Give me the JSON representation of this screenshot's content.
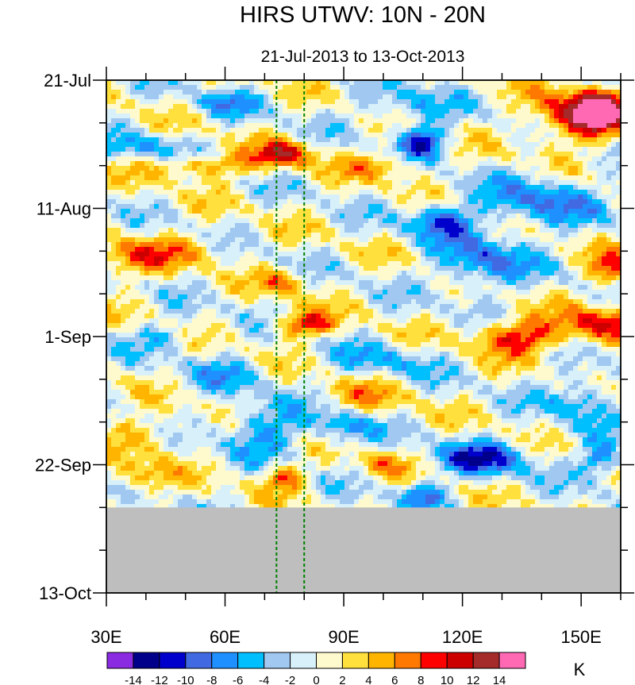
{
  "chart_data": {
    "type": "heatmap",
    "title": "HIRS UTWV: 10N - 20N",
    "subtitle": "21-Jul-2013 to 13-Oct-2013",
    "xlabel": "",
    "ylabel": "",
    "x_axis": {
      "min": 30,
      "max": 160,
      "ticks": [
        {
          "value": 30,
          "label": "30E"
        },
        {
          "value": 60,
          "label": "60E"
        },
        {
          "value": 90,
          "label": "90E"
        },
        {
          "value": 120,
          "label": "120E"
        },
        {
          "value": 150,
          "label": "150E"
        }
      ]
    },
    "y_axis": {
      "min_day": 0,
      "max_day": 84,
      "ticks": [
        {
          "day": 0,
          "label": "21-Jul"
        },
        {
          "day": 21,
          "label": "11-Aug"
        },
        {
          "day": 42,
          "label": "1-Sep"
        },
        {
          "day": 63,
          "label": "22-Sep"
        },
        {
          "day": 84,
          "label": "13-Oct"
        }
      ],
      "minor_step_days": 7
    },
    "no_data_from_day": 70,
    "dashed_lines_lon": [
      73,
      80
    ],
    "colorbar": {
      "levels": [
        "-14",
        "-12",
        "-10",
        "-8",
        "-6",
        "-4",
        "-2",
        "0",
        "2",
        "4",
        "6",
        "8",
        "10",
        "12",
        "14"
      ],
      "colors": [
        "#8a2be2",
        "#00008b",
        "#0000cd",
        "#4169e1",
        "#1e90ff",
        "#00bfff",
        "#a0c8f0",
        "#d8f0fa",
        "#fffacd",
        "#ffe03c",
        "#ffb400",
        "#ff7800",
        "#ff0000",
        "#cd0000",
        "#a52a2a",
        "#ff69b4"
      ],
      "unit": "K"
    },
    "anomalies": [
      {
        "lon": 155,
        "day": 5,
        "value": 14,
        "slon": 5,
        "sday": 2.5
      },
      {
        "lon": 147,
        "day": 6,
        "value": 9,
        "slon": 7,
        "sday": 3
      },
      {
        "lon": 75,
        "day": 12,
        "value": 10,
        "slon": 5,
        "sday": 1.5
      },
      {
        "lon": 55,
        "day": 14,
        "value": 7,
        "slon": 10,
        "sday": 1.5
      },
      {
        "lon": 100,
        "day": 14,
        "value": 5,
        "slon": 8,
        "sday": 1.5
      },
      {
        "lon": 40,
        "day": 11,
        "value": -5,
        "slon": 8,
        "sday": 1.5
      },
      {
        "lon": 60,
        "day": 4,
        "value": -5,
        "slon": 6,
        "sday": 1.5
      },
      {
        "lon": 110,
        "day": 10,
        "value": -11,
        "slon": 4,
        "sday": 2
      },
      {
        "lon": 105,
        "day": 4,
        "value": -5,
        "slon": 8,
        "sday": 2
      },
      {
        "lon": 140,
        "day": 20,
        "value": -7,
        "slon": 10,
        "sday": 3
      },
      {
        "lon": 115,
        "day": 23,
        "value": -9,
        "slon": 6,
        "sday": 2
      },
      {
        "lon": 125,
        "day": 30,
        "value": -8,
        "slon": 8,
        "sday": 3
      },
      {
        "lon": 45,
        "day": 28,
        "value": 5,
        "slon": 10,
        "sday": 2
      },
      {
        "lon": 35,
        "day": 30,
        "value": 4,
        "slon": 6,
        "sday": 2
      },
      {
        "lon": 75,
        "day": 33,
        "value": 6,
        "slon": 4,
        "sday": 1.5
      },
      {
        "lon": 80,
        "day": 40,
        "value": 10,
        "slon": 5,
        "sday": 1.5
      },
      {
        "lon": 135,
        "day": 42,
        "value": 10,
        "slon": 8,
        "sday": 2
      },
      {
        "lon": 155,
        "day": 40,
        "value": 9,
        "slon": 7,
        "sday": 2
      },
      {
        "lon": 158,
        "day": 31,
        "value": 9,
        "slon": 4,
        "sday": 2
      },
      {
        "lon": 45,
        "day": 42,
        "value": -4,
        "slon": 6,
        "sday": 1.5
      },
      {
        "lon": 60,
        "day": 48,
        "value": -4,
        "slon": 7,
        "sday": 2
      },
      {
        "lon": 100,
        "day": 46,
        "value": -4,
        "slon": 10,
        "sday": 2
      },
      {
        "lon": 150,
        "day": 52,
        "value": -6,
        "slon": 6,
        "sday": 3
      },
      {
        "lon": 125,
        "day": 62,
        "value": -10,
        "slon": 8,
        "sday": 2
      },
      {
        "lon": 155,
        "day": 62,
        "value": -8,
        "slon": 4,
        "sday": 2
      },
      {
        "lon": 70,
        "day": 57,
        "value": -7,
        "slon": 7,
        "sday": 3
      },
      {
        "lon": 40,
        "day": 58,
        "value": 5,
        "slon": 6,
        "sday": 2
      },
      {
        "lon": 38,
        "day": 65,
        "value": 5,
        "slon": 6,
        "sday": 2
      },
      {
        "lon": 75,
        "day": 65,
        "value": 8,
        "slon": 4,
        "sday": 1.5
      },
      {
        "lon": 100,
        "day": 63,
        "value": 5,
        "slon": 4,
        "sday": 1.5
      },
      {
        "lon": 110,
        "day": 68,
        "value": -8,
        "slon": 4,
        "sday": 1.5
      },
      {
        "lon": 90,
        "day": 57,
        "value": -6,
        "slon": 5,
        "sday": 2
      },
      {
        "lon": 95,
        "day": 52,
        "value": 4,
        "slon": 8,
        "sday": 2
      }
    ]
  }
}
